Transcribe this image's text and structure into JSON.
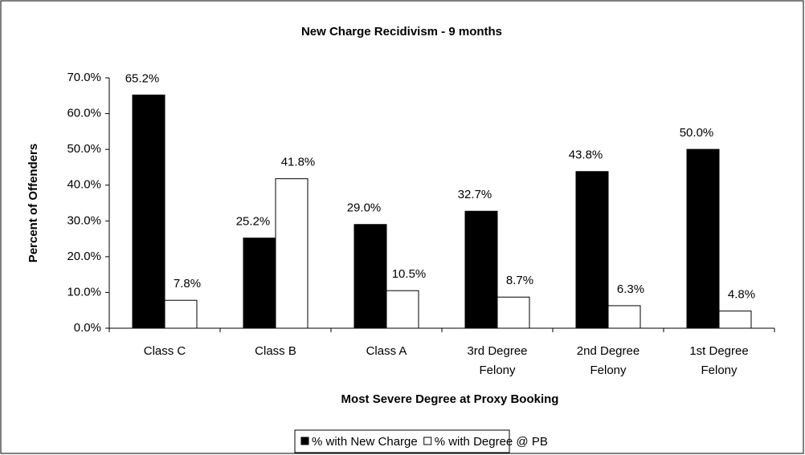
{
  "chart_data": {
    "type": "bar",
    "title": "New Charge Recidivism - 9 months",
    "x_label": "Most Severe Degree at Proxy Booking",
    "y_label": "Percent of Offenders",
    "categories": [
      "Class C",
      "Class B",
      "Class A",
      "3rd Degree Felony",
      "2nd Degree Felony",
      "1st Degree Felony"
    ],
    "series": [
      {
        "name": "% with New Charge",
        "color": "#000000",
        "values": [
          65.2,
          25.2,
          29.0,
          32.7,
          43.8,
          50.0
        ],
        "value_labels": [
          "65.2%",
          "25.2%",
          "29.0%",
          "32.7%",
          "43.8%",
          "50.0%"
        ]
      },
      {
        "name": "% with Degree @ PB",
        "color": "#ffffff",
        "values": [
          7.8,
          41.8,
          10.5,
          8.7,
          6.3,
          4.8
        ],
        "value_labels": [
          "7.8%",
          "41.8%",
          "10.5%",
          "8.7%",
          "6.3%",
          "4.8%"
        ]
      }
    ],
    "ylim": [
      0,
      70
    ],
    "yticks": [
      {
        "value": 0,
        "label": "0.0%"
      },
      {
        "value": 10,
        "label": "10.0%"
      },
      {
        "value": 20,
        "label": "20.0%"
      },
      {
        "value": 30,
        "label": "30.0%"
      },
      {
        "value": 40,
        "label": "40.0%"
      },
      {
        "value": 50,
        "label": "50.0%"
      },
      {
        "value": 60,
        "label": "60.0%"
      },
      {
        "value": 70,
        "label": "70.0%"
      }
    ],
    "legend": "bottom"
  }
}
